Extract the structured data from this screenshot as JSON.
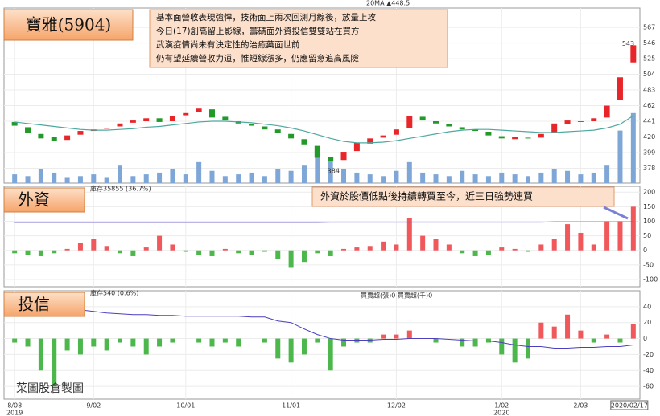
{
  "chart_data": [
    {
      "type": "candlestick",
      "title": "寶雅(5904)",
      "legend": "20MA ▲448.5",
      "annotation": [
        "基本面營收表現強悍，技術面上兩次回測月線後，放量上攻",
        "今日(17)創高留上影線，籌碼面外資投信雙雙站在買方",
        "武漢疫情尚未有決定性的治癒藥面世前",
        "仍有望延續營收力道，惟短線漲多，仍應留意追高風險"
      ],
      "high_label": 543,
      "low_label": 384,
      "ylim": [
        358,
        593
      ],
      "yticks": [
        378,
        399,
        420,
        441,
        462,
        483,
        504,
        525,
        546,
        567
      ],
      "open": [
        440,
        433,
        424,
        420,
        416,
        423,
        428,
        431,
        434,
        439,
        441,
        445,
        441,
        449,
        453,
        457,
        447,
        441,
        437,
        434,
        430,
        424,
        417,
        408,
        393,
        389,
        401,
        411,
        419,
        423,
        432,
        447,
        441,
        437,
        433,
        430,
        427,
        421,
        417,
        419,
        419,
        426,
        437,
        441,
        441,
        446,
        470,
        520
      ],
      "close": [
        435,
        425,
        418,
        415,
        422,
        428,
        430,
        432,
        438,
        442,
        445,
        440,
        448,
        452,
        458,
        446,
        442,
        438,
        435,
        430,
        425,
        418,
        410,
        392,
        388,
        400,
        412,
        418,
        422,
        430,
        448,
        442,
        438,
        434,
        430,
        428,
        422,
        418,
        420,
        418,
        424,
        438,
        442,
        440,
        445,
        462,
        500,
        543
      ],
      "ma": {
        "color": "#4fa8a0",
        "values": [
          440,
          438,
          436,
          434,
          432,
          430,
          429,
          429,
          430,
          431,
          433,
          434,
          436,
          438,
          440,
          441,
          441,
          440,
          439,
          437,
          435,
          432,
          428,
          423,
          418,
          414,
          412,
          412,
          413,
          415,
          418,
          421,
          424,
          427,
          429,
          430,
          430,
          429,
          428,
          427,
          426,
          426,
          427,
          428,
          429,
          432,
          437,
          448.5
        ]
      },
      "volume": {
        "color": "#7ea7d8",
        "ylim": [
          0,
          100
        ],
        "values": [
          5,
          4,
          8,
          6,
          3,
          4,
          5,
          3,
          10,
          4,
          5,
          6,
          8,
          5,
          12,
          7,
          4,
          5,
          6,
          4,
          8,
          7,
          10,
          20,
          15,
          8,
          6,
          5,
          4,
          7,
          12,
          6,
          5,
          4,
          7,
          5,
          4,
          6,
          5,
          4,
          6,
          8,
          7,
          5,
          6,
          10,
          30,
          40
        ]
      },
      "up_color": "#e8262a",
      "down_color": "#229a2a"
    },
    {
      "type": "bar",
      "title": "外資",
      "legend": "庫存35855 (36.7%)",
      "annotation": "外資於股價低點後持續轉買至今，近三日強勢連買",
      "ylim": [
        -125,
        220
      ],
      "yticks": [
        -100,
        -50,
        0,
        50,
        100,
        150,
        200
      ],
      "values": [
        -10,
        -15,
        -20,
        -10,
        5,
        25,
        40,
        15,
        -10,
        -20,
        10,
        50,
        20,
        -5,
        -15,
        -20,
        5,
        -10,
        -15,
        -5,
        -30,
        -60,
        -40,
        -10,
        -20,
        5,
        10,
        15,
        30,
        20,
        110,
        50,
        40,
        20,
        -10,
        -20,
        -15,
        10,
        5,
        -5,
        20,
        40,
        90,
        60,
        20,
        100,
        100,
        150
      ],
      "line": {
        "color": "#4b3fbf",
        "values": [
          96,
          96,
          96,
          96,
          96,
          96,
          96,
          96,
          96,
          96,
          96,
          96,
          96,
          96,
          96,
          96,
          96,
          96,
          96,
          96,
          96,
          96,
          96,
          96,
          97,
          97,
          97,
          97,
          97,
          97,
          97,
          97,
          97,
          97,
          97,
          97,
          97,
          97,
          97,
          97,
          97,
          98,
          98,
          98,
          98,
          98,
          98,
          98
        ]
      },
      "up_color": "#f0585c",
      "down_color": "#4cb84c"
    },
    {
      "type": "bar",
      "title": "投信",
      "legend": "庫存540 (0.6%)",
      "legend2": "買賣超(張)0 買賣超(千)0",
      "ylim": [
        -76,
        60
      ],
      "yticks": [
        -60,
        -40,
        -20,
        0,
        20,
        40
      ],
      "values": [
        -5,
        -10,
        -40,
        -60,
        -15,
        -20,
        -10,
        -15,
        -5,
        -10,
        -20,
        -10,
        -5,
        0,
        -5,
        -10,
        -5,
        -10,
        0,
        -5,
        -25,
        -30,
        -20,
        -5,
        -40,
        -10,
        -5,
        -5,
        5,
        5,
        10,
        0,
        -5,
        0,
        -10,
        -10,
        -5,
        -20,
        -30,
        -25,
        20,
        15,
        30,
        10,
        -5,
        5,
        -5,
        18
      ],
      "line": {
        "color": "#4b3fbf",
        "values": [
          40,
          40,
          39,
          38,
          37,
          36,
          34,
          32,
          31,
          30,
          30,
          29,
          29,
          28,
          28,
          28,
          28,
          28,
          27,
          27,
          22,
          20,
          12,
          5,
          0,
          -2,
          -2,
          -2,
          -1,
          -1,
          0,
          0,
          0,
          -1,
          -2,
          -3,
          -3,
          -5,
          -8,
          -10,
          -10,
          -12,
          -12,
          -11,
          -11,
          -10,
          -10,
          -8
        ]
      },
      "up_color": "#f0585c",
      "down_color": "#4cb84c"
    }
  ],
  "xticks": [
    {
      "value": 0,
      "label": "8/08",
      "year": "2019"
    },
    {
      "value": 6,
      "label": "9/02"
    },
    {
      "value": 13,
      "label": "10/01"
    },
    {
      "value": 21,
      "label": "11/01"
    },
    {
      "value": 29,
      "label": "12/02"
    },
    {
      "value": 37,
      "label": "1/02",
      "year": "2020"
    },
    {
      "value": 43,
      "label": "2/03"
    }
  ],
  "last_date": {
    "value": 47,
    "label": "2020/02/17"
  },
  "watermark": "菜圖股倉製圖"
}
